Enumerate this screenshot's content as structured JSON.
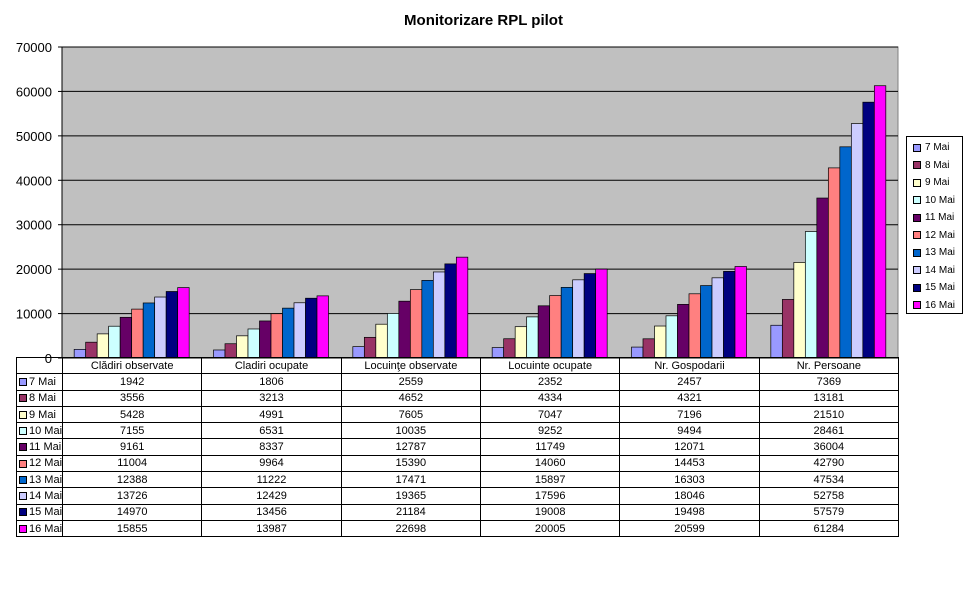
{
  "chart_data": {
    "type": "bar",
    "title": "Monitorizare RPL pilot",
    "categories": [
      "Clădiri observate",
      "Cladiri ocupate",
      "Locuinţe observate",
      "Locuinte ocupate",
      "Nr. Gospodarii",
      "Nr. Persoane"
    ],
    "ylim": [
      0,
      70000
    ],
    "yticks": [
      0,
      10000,
      20000,
      30000,
      40000,
      50000,
      60000,
      70000
    ],
    "grid": true,
    "legend_position": "right",
    "plot_background": "#c0c0c0",
    "series": [
      {
        "name": "7 Mai",
        "color": "#9999ff",
        "values": [
          1942,
          1806,
          2559,
          2352,
          2457,
          7369
        ]
      },
      {
        "name": "8 Mai",
        "color": "#993366",
        "values": [
          3556,
          3213,
          4652,
          4334,
          4321,
          13181
        ]
      },
      {
        "name": "9 Mai",
        "color": "#ffffcc",
        "values": [
          5428,
          4991,
          7605,
          7047,
          7196,
          21510
        ]
      },
      {
        "name": "10 Mai",
        "color": "#ccffff",
        "values": [
          7155,
          6531,
          10035,
          9252,
          9494,
          28461
        ]
      },
      {
        "name": "11 Mai",
        "color": "#660066",
        "values": [
          9161,
          8337,
          12787,
          11749,
          12071,
          36004
        ]
      },
      {
        "name": "12 Mai",
        "color": "#ff8080",
        "values": [
          11004,
          9964,
          15390,
          14060,
          14453,
          42790
        ]
      },
      {
        "name": "13 Mai",
        "color": "#0066cc",
        "values": [
          12388,
          11222,
          17471,
          15897,
          16303,
          47534
        ]
      },
      {
        "name": "14 Mai",
        "color": "#ccccff",
        "values": [
          13726,
          12429,
          19365,
          17596,
          18046,
          52758
        ]
      },
      {
        "name": "15 Mai",
        "color": "#000080",
        "values": [
          14970,
          13456,
          21184,
          19008,
          19498,
          57579
        ]
      },
      {
        "name": "16 Mai",
        "color": "#ff00ff",
        "values": [
          15855,
          13987,
          22698,
          20005,
          20599,
          61284
        ]
      }
    ]
  }
}
